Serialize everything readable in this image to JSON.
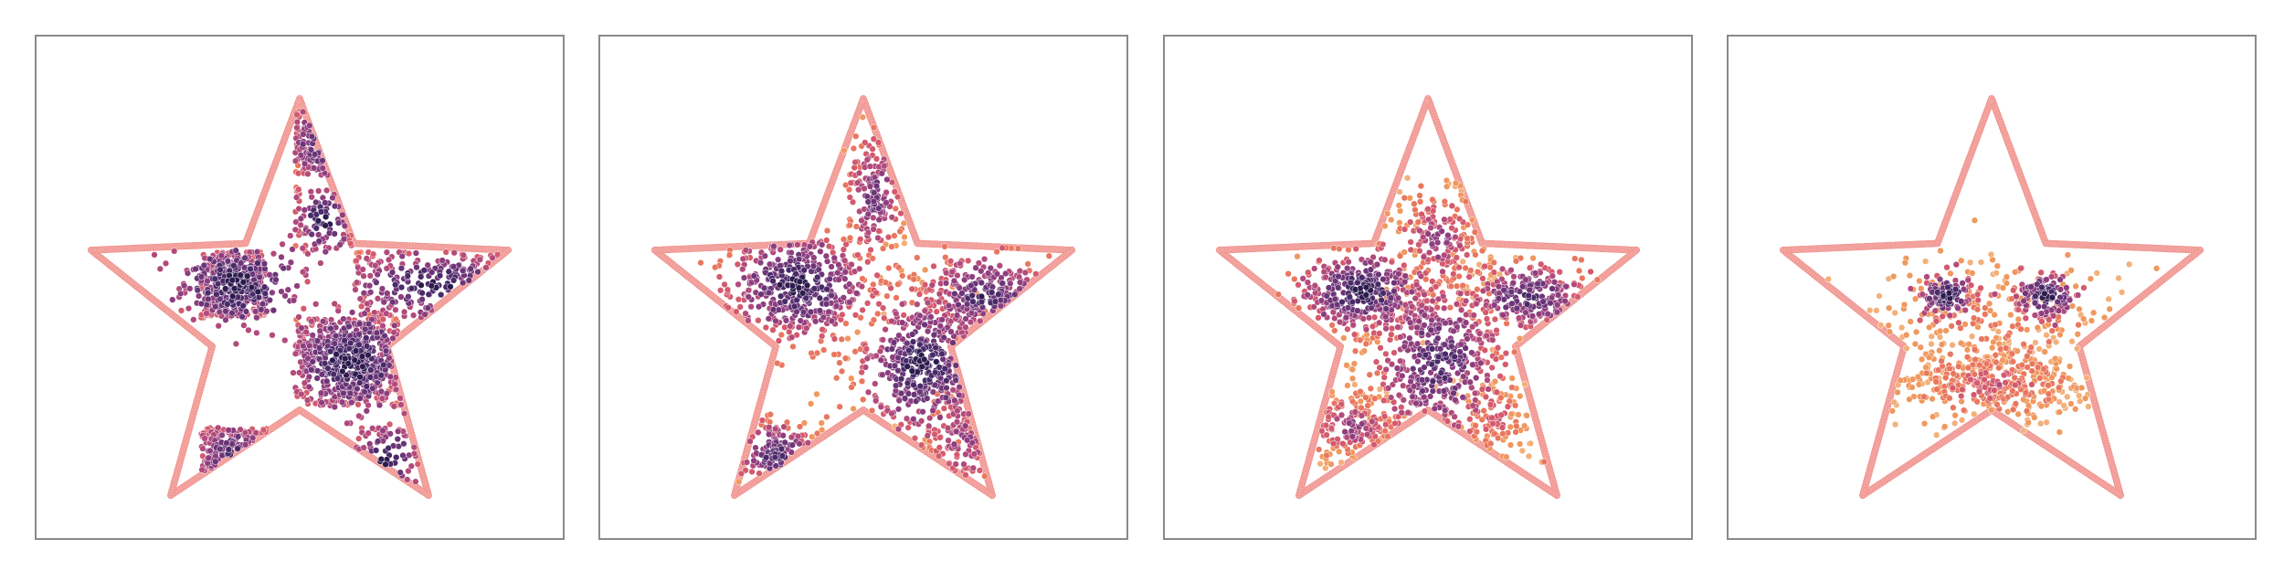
{
  "figure": {
    "colors": {
      "background": "#ffffff",
      "frame": "#8a8a8a",
      "boundary": "#f4a6a2",
      "boundary_edge": "#ee8f8a",
      "point_edge": "#ffffff",
      "palette": [
        "#2d1b4e",
        "#4a2a69",
        "#6b3578",
        "#8e3e7e",
        "#b24a7b",
        "#d45a6e",
        "#e9775f",
        "#f0985f",
        "#f3b07a"
      ]
    }
  },
  "chart_data": [
    {
      "type": "scatter",
      "title": "",
      "xlabel": "",
      "ylabel": "",
      "axes_visible": false,
      "grid": false,
      "xlim": [
        -1.15,
        1.15
      ],
      "ylim": [
        -1.15,
        1.05
      ],
      "boundary": {
        "shape": "five-point-star",
        "outer_radius": 1.0,
        "inner_radius": 0.42,
        "color": "#f4a6a2",
        "vertices": [
          [
            0.0,
            1.0
          ],
          [
            0.247,
            0.34
          ],
          [
            0.951,
            0.309
          ],
          [
            0.399,
            -0.13
          ],
          [
            0.588,
            -0.809
          ],
          [
            0.0,
            -0.42
          ],
          [
            -0.588,
            -0.809
          ],
          [
            -0.399,
            -0.13
          ],
          [
            -0.951,
            0.309
          ],
          [
            -0.247,
            0.34
          ]
        ]
      },
      "point_groups": [
        {
          "shape": "rect",
          "x": [
            -0.45,
            -0.15
          ],
          "y": [
            0.0,
            0.3
          ],
          "count": 300,
          "palette_range": [
            0,
            6
          ]
        },
        {
          "shape": "rect",
          "x": [
            0.25,
            0.95
          ],
          "y": [
            0.0,
            0.3
          ],
          "count": 210,
          "palette_range": [
            0,
            6
          ]
        },
        {
          "shape": "rect",
          "x": [
            -0.02,
            0.25
          ],
          "y": [
            0.3,
            0.6
          ],
          "count": 100,
          "palette_range": [
            0,
            6
          ]
        },
        {
          "shape": "rect",
          "x": [
            -0.02,
            0.25
          ],
          "y": [
            0.65,
            0.95
          ],
          "count": 100,
          "palette_range": [
            0,
            6
          ]
        },
        {
          "shape": "rect",
          "x": [
            -0.02,
            0.45
          ],
          "y": [
            -0.4,
            0.0
          ],
          "count": 420,
          "palette_range": [
            0,
            6
          ]
        },
        {
          "shape": "rect",
          "x": [
            -0.45,
            -0.15
          ],
          "y": [
            -0.8,
            -0.5
          ],
          "count": 140,
          "palette_range": [
            0,
            6
          ]
        },
        {
          "shape": "rect",
          "x": [
            0.25,
            0.55
          ],
          "y": [
            -0.8,
            -0.5
          ],
          "count": 60,
          "palette_range": [
            0,
            6
          ]
        },
        {
          "shape": "blob",
          "x": -0.28,
          "y": 0.15,
          "sx": 0.14,
          "sy": 0.1,
          "count": 220,
          "palette_range": [
            0,
            4
          ]
        },
        {
          "shape": "blob",
          "x": 0.25,
          "y": -0.2,
          "sx": 0.12,
          "sy": 0.12,
          "count": 220,
          "palette_range": [
            0,
            4
          ]
        }
      ]
    },
    {
      "type": "scatter",
      "title": "",
      "xlabel": "",
      "ylabel": "",
      "axes_visible": false,
      "grid": false,
      "xlim": [
        -1.15,
        1.15
      ],
      "ylim": [
        -1.15,
        1.05
      ],
      "boundary": {
        "shape": "five-point-star",
        "outer_radius": 1.0,
        "inner_radius": 0.42,
        "color": "#f4a6a2",
        "vertices": [
          [
            0.0,
            1.0
          ],
          [
            0.247,
            0.34
          ],
          [
            0.951,
            0.309
          ],
          [
            0.399,
            -0.13
          ],
          [
            0.588,
            -0.809
          ],
          [
            0.0,
            -0.42
          ],
          [
            -0.588,
            -0.809
          ],
          [
            -0.399,
            -0.13
          ],
          [
            -0.951,
            0.309
          ],
          [
            -0.247,
            0.34
          ]
        ]
      },
      "point_groups": [
        {
          "shape": "blob",
          "x": -0.3,
          "y": 0.15,
          "sx": 0.18,
          "sy": 0.13,
          "count": 450,
          "palette_range": [
            0,
            6
          ]
        },
        {
          "shape": "blob",
          "x": 0.27,
          "y": -0.22,
          "sx": 0.15,
          "sy": 0.17,
          "count": 430,
          "palette_range": [
            0,
            6
          ]
        },
        {
          "shape": "blob",
          "x": 0.55,
          "y": 0.1,
          "sx": 0.15,
          "sy": 0.1,
          "count": 230,
          "palette_range": [
            1,
            6
          ]
        },
        {
          "shape": "blob",
          "x": -0.4,
          "y": -0.62,
          "sx": 0.11,
          "sy": 0.09,
          "count": 130,
          "palette_range": [
            1,
            7
          ]
        },
        {
          "shape": "blob",
          "x": 0.05,
          "y": 0.55,
          "sx": 0.07,
          "sy": 0.18,
          "count": 170,
          "palette_range": [
            2,
            7
          ]
        },
        {
          "shape": "blob",
          "x": 0.45,
          "y": -0.55,
          "sx": 0.1,
          "sy": 0.13,
          "count": 110,
          "palette_range": [
            3,
            7
          ]
        }
      ]
    },
    {
      "type": "scatter",
      "title": "",
      "xlabel": "",
      "ylabel": "",
      "axes_visible": false,
      "grid": false,
      "xlim": [
        -1.15,
        1.15
      ],
      "ylim": [
        -1.15,
        1.05
      ],
      "boundary": {
        "shape": "five-point-star",
        "outer_radius": 1.0,
        "inner_radius": 0.42,
        "color": "#f4a6a2",
        "vertices": [
          [
            0.0,
            1.0
          ],
          [
            0.247,
            0.34
          ],
          [
            0.951,
            0.309
          ],
          [
            0.399,
            -0.13
          ],
          [
            0.588,
            -0.809
          ],
          [
            0.0,
            -0.42
          ],
          [
            -0.588,
            -0.809
          ],
          [
            -0.399,
            -0.13
          ],
          [
            -0.951,
            0.309
          ],
          [
            -0.247,
            0.34
          ]
        ]
      },
      "point_groups": [
        {
          "shape": "blob",
          "x": -0.3,
          "y": 0.12,
          "sx": 0.16,
          "sy": 0.1,
          "count": 360,
          "palette_range": [
            0,
            6
          ]
        },
        {
          "shape": "blob",
          "x": 0.05,
          "y": -0.2,
          "sx": 0.18,
          "sy": 0.22,
          "count": 520,
          "palette_range": [
            1,
            7
          ]
        },
        {
          "shape": "blob",
          "x": 0.45,
          "y": 0.1,
          "sx": 0.14,
          "sy": 0.08,
          "count": 240,
          "palette_range": [
            1,
            6
          ]
        },
        {
          "shape": "blob",
          "x": -0.35,
          "y": -0.5,
          "sx": 0.12,
          "sy": 0.09,
          "count": 160,
          "palette_range": [
            3,
            8
          ]
        },
        {
          "shape": "blob",
          "x": 0.05,
          "y": 0.35,
          "sx": 0.12,
          "sy": 0.15,
          "count": 180,
          "palette_range": [
            3,
            8
          ]
        },
        {
          "shape": "blob",
          "x": 0.3,
          "y": -0.45,
          "sx": 0.1,
          "sy": 0.12,
          "count": 100,
          "palette_range": [
            5,
            8
          ]
        }
      ]
    },
    {
      "type": "scatter",
      "title": "",
      "xlabel": "",
      "ylabel": "",
      "axes_visible": false,
      "grid": false,
      "xlim": [
        -1.15,
        1.15
      ],
      "ylim": [
        -1.15,
        1.05
      ],
      "boundary": {
        "shape": "five-point-star",
        "outer_radius": 1.0,
        "inner_radius": 0.42,
        "color": "#f4a6a2",
        "vertices": [
          [
            0.0,
            1.0
          ],
          [
            0.247,
            0.34
          ],
          [
            0.951,
            0.309
          ],
          [
            0.399,
            -0.13
          ],
          [
            0.588,
            -0.809
          ],
          [
            0.0,
            -0.42
          ],
          [
            -0.588,
            -0.809
          ],
          [
            -0.399,
            -0.13
          ],
          [
            -0.951,
            0.309
          ],
          [
            -0.247,
            0.34
          ]
        ]
      },
      "point_groups": [
        {
          "shape": "blob",
          "x": -0.2,
          "y": 0.1,
          "sx": 0.06,
          "sy": 0.05,
          "count": 110,
          "palette_range": [
            0,
            5
          ]
        },
        {
          "shape": "blob",
          "x": 0.25,
          "y": 0.1,
          "sx": 0.07,
          "sy": 0.05,
          "count": 130,
          "palette_range": [
            0,
            5
          ]
        },
        {
          "shape": "blob",
          "x": 0.0,
          "y": -0.3,
          "sx": 0.25,
          "sy": 0.1,
          "count": 380,
          "palette_range": [
            5,
            8
          ]
        },
        {
          "shape": "blob",
          "x": 0.02,
          "y": 0.0,
          "sx": 0.3,
          "sy": 0.15,
          "count": 240,
          "palette_range": [
            6,
            8
          ]
        }
      ]
    }
  ]
}
